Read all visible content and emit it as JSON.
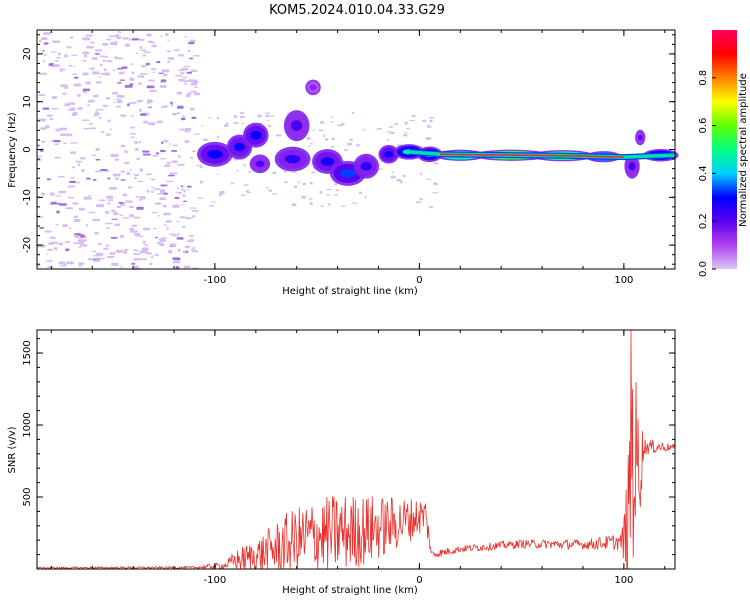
{
  "figure": {
    "title": "KOM5.2024.010.04.33.G29"
  },
  "chart_data": [
    {
      "type": "heatmap",
      "title": "KOM5.2024.010.04.33.G29",
      "xlabel": "Height of straight line (km)",
      "ylabel": "Frequency (Hz)",
      "xlim": [
        -187,
        125
      ],
      "ylim": [
        -25,
        25
      ],
      "x_ticks": [
        -100,
        0,
        100
      ],
      "y_ticks": [
        -20,
        -10,
        0,
        10,
        20
      ],
      "colorbar": {
        "label": "Normalized spectral amplitude",
        "range": [
          0,
          1
        ],
        "ticks": [
          0.0,
          0.2,
          0.4,
          0.6,
          0.8
        ],
        "colormap": [
          "#ddc6f4",
          "#b040f0",
          "#5a00f0",
          "#0000ff",
          "#00d0ff",
          "#00ff80",
          "#60ff00",
          "#ffff00",
          "#ff8000",
          "#ff0000",
          "#ff0060"
        ]
      },
      "blobs": [
        {
          "x": -100,
          "y": -1.0,
          "w": 14,
          "h": 4,
          "v": 0.3
        },
        {
          "x": -88,
          "y": 0.5,
          "w": 10,
          "h": 4,
          "v": 0.28
        },
        {
          "x": -80,
          "y": 3.0,
          "w": 10,
          "h": 4,
          "v": 0.3
        },
        {
          "x": -78,
          "y": -3.0,
          "w": 8,
          "h": 3,
          "v": 0.22
        },
        {
          "x": -60,
          "y": 5.0,
          "w": 10,
          "h": 5,
          "v": 0.22
        },
        {
          "x": -52,
          "y": 13.0,
          "w": 6,
          "h": 2.5,
          "v": 0.15
        },
        {
          "x": -62,
          "y": -2.0,
          "w": 14,
          "h": 4,
          "v": 0.25
        },
        {
          "x": -45,
          "y": -2.5,
          "w": 12,
          "h": 4,
          "v": 0.28
        },
        {
          "x": -35,
          "y": -5.0,
          "w": 14,
          "h": 4,
          "v": 0.33
        },
        {
          "x": -26,
          "y": -3.5,
          "w": 10,
          "h": 4,
          "v": 0.25
        },
        {
          "x": -15,
          "y": -1.0,
          "w": 8,
          "h": 3,
          "v": 0.3
        },
        {
          "x": -5,
          "y": -0.5,
          "w": 12,
          "h": 2.5,
          "v": 0.45
        },
        {
          "x": 5,
          "y": -1.0,
          "w": 10,
          "h": 2.5,
          "v": 0.42
        },
        {
          "x": 20,
          "y": -1.2,
          "w": 20,
          "h": 1.8,
          "v": 0.8
        },
        {
          "x": 45,
          "y": -1.2,
          "w": 30,
          "h": 1.8,
          "v": 0.9
        },
        {
          "x": 70,
          "y": -1.3,
          "w": 25,
          "h": 1.8,
          "v": 0.85
        },
        {
          "x": 90,
          "y": -1.5,
          "w": 14,
          "h": 1.8,
          "v": 0.6
        },
        {
          "x": 104,
          "y": -3.5,
          "w": 6,
          "h": 4,
          "v": 0.22
        },
        {
          "x": 108,
          "y": 2.5,
          "w": 4,
          "h": 2.5,
          "v": 0.2
        },
        {
          "x": 118,
          "y": -1.2,
          "w": 14,
          "h": 2,
          "v": 0.45
        }
      ]
    },
    {
      "type": "line",
      "xlabel": "Height of straight line (km)",
      "ylabel": "SNR (v/v)",
      "xlim": [
        -187,
        125
      ],
      "ylim": [
        0,
        1660
      ],
      "x_ticks": [
        -100,
        0,
        100
      ],
      "y_ticks": [
        500,
        1000,
        1500
      ],
      "color": "#e8302c",
      "envelope": [
        {
          "x": -187,
          "base": 8,
          "noise": 6
        },
        {
          "x": -110,
          "base": 10,
          "noise": 8
        },
        {
          "x": -95,
          "base": 25,
          "noise": 25
        },
        {
          "x": -90,
          "base": 60,
          "noise": 70
        },
        {
          "x": -80,
          "base": 90,
          "noise": 120
        },
        {
          "x": -65,
          "base": 170,
          "noise": 220
        },
        {
          "x": -55,
          "base": 220,
          "noise": 250
        },
        {
          "x": -40,
          "base": 250,
          "noise": 280
        },
        {
          "x": -25,
          "base": 270,
          "noise": 250
        },
        {
          "x": -10,
          "base": 320,
          "noise": 180
        },
        {
          "x": 3,
          "base": 380,
          "noise": 120
        },
        {
          "x": 6,
          "base": 100,
          "noise": 30
        },
        {
          "x": 20,
          "base": 140,
          "noise": 25
        },
        {
          "x": 50,
          "base": 175,
          "noise": 30
        },
        {
          "x": 80,
          "base": 170,
          "noise": 35
        },
        {
          "x": 99,
          "base": 190,
          "noise": 60
        },
        {
          "x": 102,
          "base": 250,
          "noise": 500
        },
        {
          "x": 104,
          "base": 800,
          "noise": 800
        },
        {
          "x": 107,
          "base": 700,
          "noise": 500
        },
        {
          "x": 110,
          "base": 850,
          "noise": 60
        },
        {
          "x": 125,
          "base": 845,
          "noise": 20
        }
      ],
      "peak": {
        "x": 103.5,
        "y": 1660
      }
    }
  ]
}
